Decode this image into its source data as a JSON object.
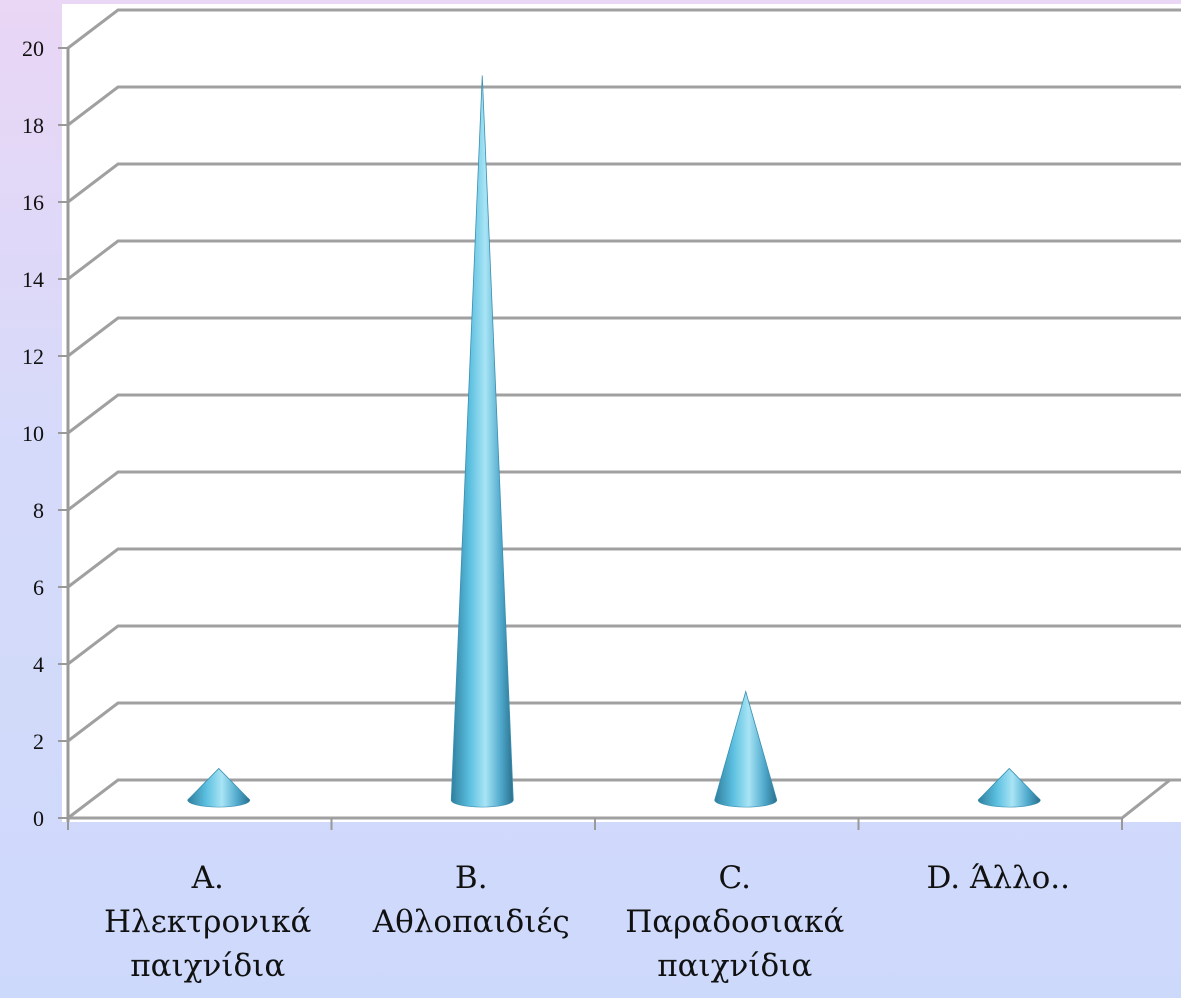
{
  "chart_data": {
    "type": "bar",
    "bar_shape": "cone",
    "style": "3d",
    "categories": [
      [
        "A.",
        "Ηλεκτρονικά",
        "παιχνίδια"
      ],
      [
        "B.",
        "Αθλοπαιδιές"
      ],
      [
        "C.",
        "Παραδοσιακά",
        "παιχνίδια"
      ],
      [
        "D. Άλλο.."
      ]
    ],
    "values": [
      1,
      19,
      3,
      1
    ],
    "ylim": [
      0,
      20
    ],
    "yticks": [
      "0",
      "2",
      "4",
      "6",
      "8",
      "10",
      "12",
      "14",
      "16",
      "18",
      "20"
    ],
    "grid": true,
    "colors": {
      "cone": "#4fb3d6",
      "cone_light": "#a8e4f5",
      "cone_dark": "#2f7f9e",
      "gridline": "#a0a0a0",
      "plot_wall": "#ffffff"
    }
  }
}
